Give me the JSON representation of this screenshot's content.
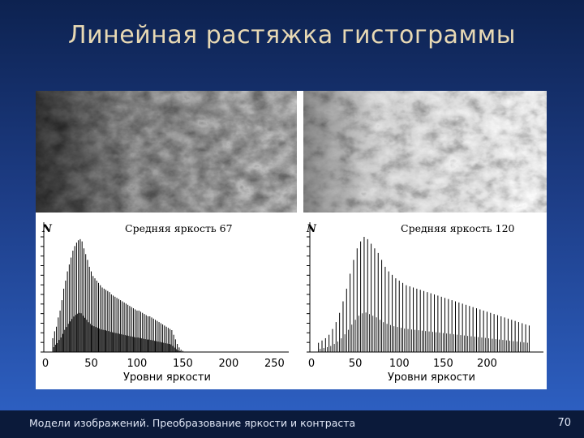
{
  "slide": {
    "title": "Линейная растяжка гистограммы",
    "footer": "Модели изображений. Преобразование яркости и контраста",
    "page_number": "70"
  },
  "left": {
    "caption": "Средняя яркость 67",
    "y_label": "N",
    "x_label": "Уровни яркости",
    "ticks": [
      "0",
      "50",
      "100",
      "150",
      "200",
      "250"
    ]
  },
  "right": {
    "caption": "Средняя яркость 120",
    "y_label": "N",
    "x_label": "Уровни яркости",
    "ticks": [
      "0",
      "50",
      "100",
      "150",
      "200"
    ]
  },
  "chart_data": [
    {
      "type": "bar",
      "xlabel": "Уровни яркости",
      "ylabel": "N",
      "annotation": "Средняя яркость 67",
      "xlim": [
        0,
        255
      ],
      "x": [
        8,
        10,
        12,
        14,
        16,
        18,
        20,
        22,
        24,
        26,
        28,
        30,
        32,
        34,
        36,
        38,
        40,
        42,
        44,
        46,
        48,
        50,
        52,
        54,
        56,
        58,
        60,
        62,
        64,
        66,
        68,
        70,
        72,
        74,
        76,
        78,
        80,
        82,
        84,
        86,
        88,
        90,
        92,
        94,
        96,
        98,
        100,
        102,
        104,
        106,
        108,
        110,
        112,
        114,
        116,
        118,
        120,
        122,
        124,
        126,
        128,
        130,
        132,
        134,
        136,
        138,
        140,
        142,
        144,
        146,
        148,
        150
      ],
      "values": [
        0.12,
        0.18,
        0.22,
        0.3,
        0.36,
        0.45,
        0.55,
        0.62,
        0.7,
        0.76,
        0.82,
        0.88,
        0.92,
        0.95,
        0.97,
        0.98,
        0.96,
        0.9,
        0.85,
        0.8,
        0.74,
        0.7,
        0.66,
        0.64,
        0.62,
        0.6,
        0.58,
        0.56,
        0.55,
        0.54,
        0.53,
        0.52,
        0.5,
        0.49,
        0.48,
        0.47,
        0.46,
        0.45,
        0.44,
        0.43,
        0.42,
        0.41,
        0.4,
        0.39,
        0.38,
        0.37,
        0.36,
        0.36,
        0.35,
        0.34,
        0.33,
        0.32,
        0.31,
        0.31,
        0.3,
        0.29,
        0.28,
        0.27,
        0.26,
        0.25,
        0.24,
        0.23,
        0.22,
        0.21,
        0.2,
        0.19,
        0.15,
        0.11,
        0.07,
        0.04,
        0.02,
        0.01
      ]
    },
    {
      "type": "bar",
      "xlabel": "Уровни яркости",
      "ylabel": "N",
      "annotation": "Средняя яркость 120",
      "xlim": [
        0,
        255
      ],
      "x": [
        8,
        12,
        16,
        20,
        24,
        28,
        32,
        36,
        40,
        44,
        48,
        52,
        56,
        60,
        64,
        68,
        72,
        76,
        80,
        84,
        88,
        92,
        96,
        100,
        104,
        108,
        112,
        116,
        120,
        124,
        128,
        132,
        136,
        140,
        144,
        148,
        152,
        156,
        160,
        164,
        168,
        172,
        176,
        180,
        184,
        188,
        192,
        196,
        200,
        204,
        208,
        212,
        216,
        220,
        224,
        228,
        232,
        236,
        240,
        244,
        248
      ],
      "values": [
        0.08,
        0.1,
        0.12,
        0.15,
        0.2,
        0.26,
        0.34,
        0.44,
        0.55,
        0.68,
        0.8,
        0.9,
        0.96,
        1.0,
        0.98,
        0.94,
        0.9,
        0.86,
        0.8,
        0.74,
        0.7,
        0.67,
        0.64,
        0.62,
        0.6,
        0.58,
        0.57,
        0.56,
        0.55,
        0.54,
        0.53,
        0.52,
        0.51,
        0.5,
        0.49,
        0.48,
        0.47,
        0.46,
        0.45,
        0.44,
        0.43,
        0.42,
        0.41,
        0.4,
        0.39,
        0.38,
        0.37,
        0.36,
        0.35,
        0.34,
        0.33,
        0.32,
        0.31,
        0.3,
        0.29,
        0.28,
        0.27,
        0.26,
        0.25,
        0.24,
        0.23
      ]
    }
  ]
}
